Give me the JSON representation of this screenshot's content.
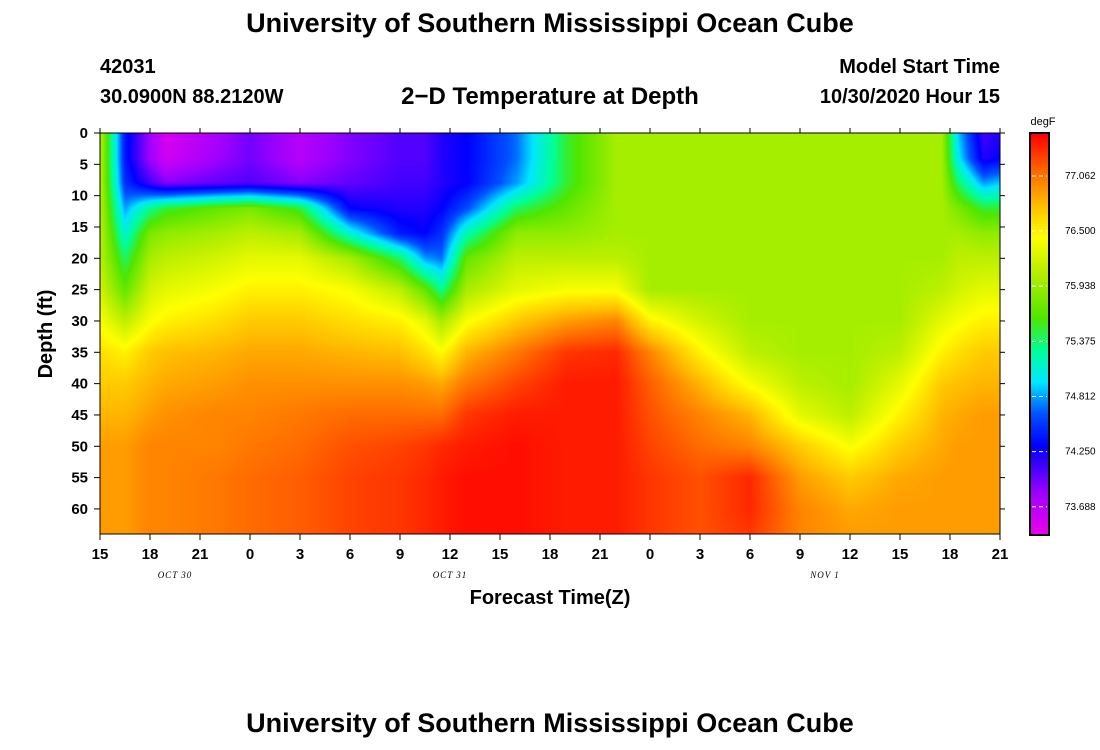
{
  "header": {
    "title": "University of Southern Mississippi Ocean Cube",
    "station_id": "42031",
    "coordinates": "30.0900N 88.2120W",
    "chart_title": "2−D Temperature at Depth",
    "model_start_label": "Model Start Time",
    "model_start_value": "10/30/2020 Hour 15"
  },
  "footer": {
    "title": "University of Southern Mississippi Ocean Cube"
  },
  "chart_data": {
    "type": "heatmap",
    "title": "2−D Temperature at Depth",
    "xlabel": "Forecast Time(Z)",
    "ylabel": "Depth (ft)",
    "x_range_hours": [
      0,
      54
    ],
    "x_ticks": [
      {
        "hour": 0,
        "label": "15"
      },
      {
        "hour": 3,
        "label": "18"
      },
      {
        "hour": 6,
        "label": "21"
      },
      {
        "hour": 9,
        "label": "0"
      },
      {
        "hour": 12,
        "label": "3"
      },
      {
        "hour": 15,
        "label": "6"
      },
      {
        "hour": 18,
        "label": "9"
      },
      {
        "hour": 21,
        "label": "12"
      },
      {
        "hour": 24,
        "label": "15"
      },
      {
        "hour": 27,
        "label": "18"
      },
      {
        "hour": 30,
        "label": "21"
      },
      {
        "hour": 33,
        "label": "0"
      },
      {
        "hour": 36,
        "label": "3"
      },
      {
        "hour": 39,
        "label": "6"
      },
      {
        "hour": 42,
        "label": "9"
      },
      {
        "hour": 45,
        "label": "12"
      },
      {
        "hour": 48,
        "label": "15"
      },
      {
        "hour": 51,
        "label": "18"
      },
      {
        "hour": 54,
        "label": "21"
      }
    ],
    "date_labels": [
      {
        "hour": 4.5,
        "label": "OCT 30"
      },
      {
        "hour": 21,
        "label": "OCT 31"
      },
      {
        "hour": 43.5,
        "label": "NOV 1"
      }
    ],
    "y_range_ft": [
      0,
      64
    ],
    "y_ticks": [
      0,
      5,
      10,
      15,
      20,
      25,
      30,
      35,
      40,
      45,
      50,
      55,
      60
    ],
    "colorbar": {
      "unit": "degF",
      "min": 73.4,
      "max": 77.5,
      "tick_values": [
        73.688,
        74.25,
        74.812,
        75.375,
        75.938,
        76.5,
        77.062
      ],
      "tick_labels": [
        "73.688",
        "74.250",
        "74.812",
        "75.375",
        "75.938",
        "76.500",
        "77.062"
      ]
    },
    "description_grid": {
      "depths_ft": [
        0,
        4,
        8,
        12,
        16,
        20,
        25,
        30,
        35,
        40,
        45,
        50,
        55,
        60,
        64
      ],
      "rows": [
        {
          "hour": 0,
          "temps": [
            76.1,
            76.1,
            76.1,
            76.1,
            76.1,
            76.1,
            76.2,
            76.4,
            76.6,
            76.7,
            76.8,
            76.9,
            76.9,
            76.9,
            76.9
          ]
        },
        {
          "hour": 1.5,
          "temps": [
            74.4,
            74.4,
            74.5,
            74.8,
            75.1,
            75.4,
            75.7,
            76.1,
            76.5,
            76.7,
            76.8,
            76.9,
            76.9,
            76.9,
            76.9
          ]
        },
        {
          "hour": 3,
          "temps": [
            73.8,
            73.8,
            74.1,
            75.3,
            75.8,
            76.0,
            76.2,
            76.4,
            76.7,
            76.8,
            76.9,
            77.0,
            77.0,
            77.0,
            77.0
          ]
        },
        {
          "hour": 4,
          "temps": [
            73.5,
            73.55,
            73.9,
            75.5,
            75.9,
            76.1,
            76.3,
            76.5,
            76.75,
            76.85,
            76.95,
            77.0,
            77.0,
            77.0,
            77.0
          ]
        },
        {
          "hour": 7,
          "temps": [
            73.75,
            73.8,
            74.0,
            75.7,
            76.0,
            76.2,
            76.4,
            76.6,
            76.8,
            76.9,
            77.0,
            77.0,
            77.05,
            77.05,
            77.05
          ]
        },
        {
          "hour": 9,
          "temps": [
            73.95,
            73.95,
            74.05,
            75.8,
            76.1,
            76.3,
            76.5,
            76.7,
            76.85,
            76.95,
            77.0,
            77.05,
            77.1,
            77.1,
            77.1
          ]
        },
        {
          "hour": 12,
          "temps": [
            73.7,
            73.7,
            73.9,
            75.5,
            76.0,
            76.3,
            76.5,
            76.7,
            76.85,
            76.95,
            77.05,
            77.1,
            77.15,
            77.15,
            77.15
          ]
        },
        {
          "hour": 15,
          "temps": [
            73.9,
            73.9,
            74.0,
            74.3,
            75.1,
            76.0,
            76.4,
            76.6,
            76.8,
            76.95,
            77.1,
            77.2,
            77.25,
            77.25,
            77.25
          ]
        },
        {
          "hour": 18,
          "temps": [
            74.05,
            74.05,
            74.1,
            74.2,
            74.4,
            75.4,
            76.1,
            76.5,
            76.75,
            76.95,
            77.1,
            77.25,
            77.3,
            77.3,
            77.3
          ]
        },
        {
          "hour": 19.5,
          "temps": [
            74.05,
            74.05,
            74.1,
            74.2,
            74.3,
            74.8,
            75.7,
            76.3,
            76.6,
            76.9,
            77.1,
            77.3,
            77.35,
            77.35,
            77.35
          ]
        },
        {
          "hour": 20.5,
          "temps": [
            74.2,
            74.2,
            74.2,
            74.3,
            74.5,
            74.7,
            75.3,
            76.0,
            76.45,
            76.85,
            77.1,
            77.35,
            77.4,
            77.4,
            77.4
          ]
        },
        {
          "hour": 22,
          "temps": [
            74.3,
            74.3,
            74.3,
            74.6,
            75.2,
            75.7,
            76.0,
            76.4,
            76.8,
            77.05,
            77.3,
            77.4,
            77.45,
            77.45,
            77.45
          ]
        },
        {
          "hour": 25,
          "temps": [
            74.7,
            74.7,
            74.8,
            75.4,
            75.9,
            76.1,
            76.3,
            76.7,
            77.05,
            77.25,
            77.4,
            77.45,
            77.45,
            77.45,
            77.45
          ]
        },
        {
          "hour": 28,
          "temps": [
            75.5,
            75.5,
            75.5,
            75.7,
            75.9,
            76.1,
            76.4,
            76.9,
            77.3,
            77.4,
            77.4,
            77.4,
            77.4,
            77.4,
            77.4
          ]
        },
        {
          "hour": 31,
          "temps": [
            76.0,
            76.0,
            76.0,
            76.0,
            76.0,
            76.1,
            76.4,
            77.0,
            77.35,
            77.4,
            77.4,
            77.4,
            77.4,
            77.4,
            77.4
          ]
        },
        {
          "hour": 33,
          "temps": [
            76.0,
            76.0,
            76.0,
            76.0,
            76.0,
            76.0,
            76.0,
            76.5,
            77.0,
            77.15,
            77.2,
            77.25,
            77.3,
            77.3,
            77.3
          ]
        },
        {
          "hour": 36,
          "temps": [
            76.0,
            76.0,
            76.0,
            76.0,
            76.0,
            76.0,
            76.0,
            76.2,
            76.5,
            76.8,
            77.0,
            77.1,
            77.2,
            77.2,
            77.2
          ]
        },
        {
          "hour": 39,
          "temps": [
            76.0,
            76.0,
            76.0,
            76.0,
            76.0,
            76.0,
            76.0,
            76.0,
            76.1,
            76.4,
            76.8,
            77.0,
            77.35,
            77.35,
            77.3
          ]
        },
        {
          "hour": 42,
          "temps": [
            76.0,
            76.0,
            76.0,
            76.0,
            76.0,
            76.0,
            76.0,
            76.0,
            76.0,
            76.1,
            76.3,
            76.7,
            76.9,
            77.0,
            77.0
          ]
        },
        {
          "hour": 45,
          "temps": [
            76.0,
            76.0,
            76.0,
            76.0,
            76.0,
            76.0,
            76.0,
            76.0,
            76.0,
            76.0,
            76.1,
            76.4,
            76.7,
            76.85,
            76.9
          ]
        },
        {
          "hour": 48,
          "temps": [
            76.0,
            76.0,
            76.0,
            76.0,
            76.0,
            76.0,
            76.0,
            76.0,
            76.1,
            76.3,
            76.5,
            76.7,
            76.85,
            76.9,
            76.9
          ]
        },
        {
          "hour": 50.5,
          "temps": [
            76.0,
            76.0,
            76.0,
            76.0,
            76.0,
            76.0,
            76.1,
            76.3,
            76.5,
            76.7,
            76.8,
            76.85,
            76.9,
            76.9,
            76.9
          ]
        },
        {
          "hour": 51.5,
          "temps": [
            74.9,
            75.0,
            75.4,
            75.8,
            76.0,
            76.1,
            76.2,
            76.4,
            76.6,
            76.75,
            76.85,
            76.9,
            76.9,
            76.9,
            76.9
          ]
        },
        {
          "hour": 53,
          "temps": [
            74.1,
            74.2,
            74.8,
            75.5,
            75.9,
            76.1,
            76.3,
            76.5,
            76.7,
            76.8,
            76.9,
            76.9,
            76.9,
            76.9,
            76.9
          ]
        },
        {
          "hour": 54,
          "temps": [
            74.2,
            74.3,
            74.9,
            75.5,
            75.9,
            76.1,
            76.3,
            76.5,
            76.7,
            76.8,
            76.9,
            76.9,
            76.9,
            76.9,
            76.9
          ]
        }
      ]
    }
  }
}
